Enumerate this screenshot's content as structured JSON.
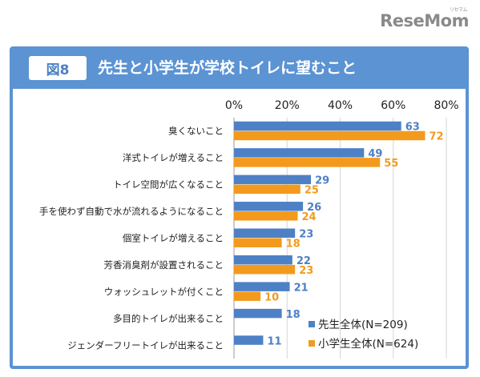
{
  "watermark": {
    "brand": "ReseMom",
    "ruby": "リセマム"
  },
  "figure": {
    "badge": "図8",
    "title": "先生と小学生が学校トイレに望むこと"
  },
  "colors": {
    "panel": "#5b93d3",
    "series_teacher": "#4e80c5",
    "series_student": "#f39a1c"
  },
  "chart_data": {
    "type": "bar",
    "orientation": "horizontal",
    "categories": [
      "臭くないこと",
      "洋式トイレが増えること",
      "トイレ空間が広くなること",
      "手を使わず自動で水が流れるようになること",
      "個室トイレが増えること",
      "芳香消臭剤が設置されること",
      "ウォッシュレットが付くこと",
      "多目的トイレが出来ること",
      "ジェンダーフリートイレが出来ること"
    ],
    "series": [
      {
        "name": "先生全体(N=209)",
        "values": [
          63,
          49,
          29,
          26,
          23,
          22,
          21,
          18,
          11
        ]
      },
      {
        "name": "小学生全体(N=624)",
        "values": [
          72,
          55,
          25,
          24,
          18,
          23,
          10,
          null,
          null
        ]
      }
    ],
    "xlim": [
      0,
      80
    ],
    "xticks": [
      "0%",
      "20%",
      "40%",
      "60%",
      "80%"
    ],
    "grid": true,
    "legend": "bottom-right"
  }
}
